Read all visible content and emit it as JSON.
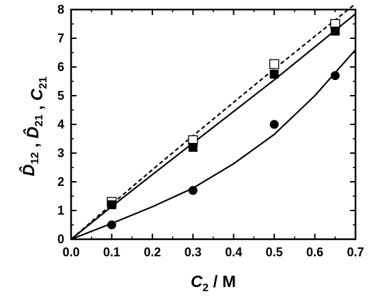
{
  "chart_data": {
    "type": "scatter",
    "xlabel": {
      "var": "C",
      "sub": "2",
      "unit": " / M"
    },
    "ylabel": [
      {
        "var": "D",
        "sub": "12",
        "hat": true
      },
      {
        "sep": " , "
      },
      {
        "var": "D",
        "sub": "21",
        "hat": true
      },
      {
        "sep": " , "
      },
      {
        "var": "C",
        "sub": "21",
        "hat": false
      }
    ],
    "xlim": [
      0.0,
      0.7
    ],
    "ylim": [
      0,
      8
    ],
    "xticks": [
      0.0,
      0.1,
      0.2,
      0.3,
      0.4,
      0.5,
      0.6,
      0.7
    ],
    "xtick_labels": [
      "0.0",
      "0.1",
      "0.2",
      "0.3",
      "0.4",
      "0.5",
      "0.6",
      "0.7"
    ],
    "yticks": [
      0,
      1,
      2,
      3,
      4,
      5,
      6,
      7,
      8
    ],
    "ytick_labels": [
      "0",
      "1",
      "2",
      "3",
      "4",
      "5",
      "6",
      "7",
      "8"
    ],
    "grid": false,
    "legend": "none",
    "series": [
      {
        "marker": "open-square",
        "x": [
          0.1,
          0.3,
          0.5,
          0.65
        ],
        "y": [
          1.3,
          3.45,
          6.1,
          7.5
        ]
      },
      {
        "marker": "filled-square",
        "x": [
          0.1,
          0.3,
          0.5,
          0.65
        ],
        "y": [
          1.2,
          3.2,
          5.75,
          7.25
        ]
      },
      {
        "marker": "filled-circle",
        "x": [
          0.1,
          0.3,
          0.5,
          0.65
        ],
        "y": [
          0.5,
          1.7,
          4.0,
          5.7
        ]
      }
    ],
    "lines": [
      {
        "style": "dashed",
        "x": [
          0.0,
          0.1,
          0.2,
          0.3,
          0.4,
          0.5,
          0.6,
          0.7
        ],
        "y": [
          0.0,
          1.22,
          2.42,
          3.6,
          4.77,
          5.93,
          7.07,
          8.2
        ]
      },
      {
        "style": "solid",
        "x": [
          0.0,
          0.1,
          0.2,
          0.3,
          0.4,
          0.5,
          0.6,
          0.7
        ],
        "y": [
          0.0,
          1.14,
          2.25,
          3.35,
          4.45,
          5.55,
          6.7,
          7.85
        ]
      },
      {
        "style": "solid",
        "x": [
          0.0,
          0.1,
          0.2,
          0.3,
          0.4,
          0.5,
          0.6,
          0.7
        ],
        "y": [
          0.0,
          0.55,
          1.13,
          1.78,
          2.63,
          3.65,
          5.0,
          6.6
        ]
      }
    ]
  }
}
